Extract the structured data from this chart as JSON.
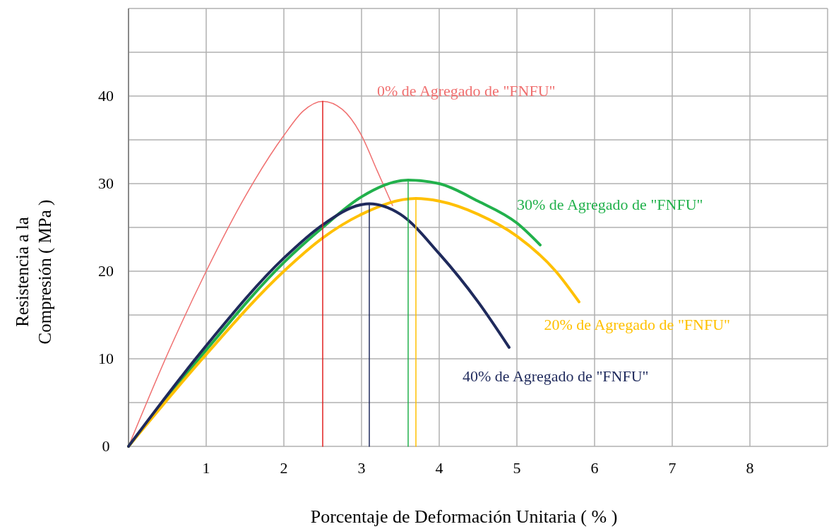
{
  "chart_data": {
    "type": "line",
    "xlabel": "Porcentaje de Deformación Unitaria ( % )",
    "ylabel": "Resistencia a la\nCompresión ( MPa )",
    "xlim": [
      0,
      9
    ],
    "ylim": [
      0,
      50
    ],
    "xticks": [
      {
        "value": 0,
        "label": null
      },
      1,
      2,
      3,
      4,
      5,
      6,
      7,
      8,
      {
        "value": 9,
        "label": null
      }
    ],
    "yticks": [
      0,
      {
        "value": 5,
        "label": null
      },
      10,
      {
        "value": 15,
        "label": null
      },
      20,
      {
        "value": 25,
        "label": null
      },
      30,
      {
        "value": 35,
        "label": null
      },
      40,
      {
        "value": 45,
        "label": null
      },
      {
        "value": 50,
        "label": null
      }
    ],
    "grid": true,
    "marker": "none",
    "line_style": "solid",
    "series": [
      {
        "name": "0% de Agregado de \"FNFU\"",
        "color": "#f07070",
        "x": [
          0,
          0.5,
          1,
          1.5,
          2,
          2.25,
          2.5,
          2.75,
          3,
          3.2,
          3.4
        ],
        "values": [
          0,
          10.5,
          20,
          28.5,
          35.5,
          38.3,
          39.4,
          38.5,
          35.5,
          31.5,
          27.5
        ]
      },
      {
        "name": "30% de Agregado de \"FNFU\"",
        "color": "#22b14c",
        "x": [
          0,
          1,
          2,
          2.5,
          3,
          3.6,
          4,
          4.5,
          5,
          5.3
        ],
        "values": [
          0,
          11,
          21,
          25,
          28.5,
          30.4,
          30,
          28,
          25.5,
          23
        ]
      },
      {
        "name": "20% de Agregado de \"FNFU\"",
        "color": "#ffc000",
        "x": [
          0,
          1,
          2,
          2.5,
          3,
          3.7,
          4,
          4.5,
          5,
          5.5,
          5.8
        ],
        "values": [
          0,
          10.5,
          20,
          23.8,
          26.5,
          28.3,
          28,
          26.5,
          24,
          20,
          16.5
        ]
      },
      {
        "name": "40% de Agregado de \"FNFU\"",
        "color": "#1f2a5c",
        "x": [
          0,
          1,
          2,
          2.5,
          3,
          3.1,
          3.5,
          4,
          4.5,
          4.9
        ],
        "values": [
          0,
          11.5,
          21.5,
          25.3,
          27.6,
          27.7,
          26.5,
          22,
          16.5,
          11.3
        ]
      },
      {
        "color": "#e02020",
        "x": [
          2.5,
          2.5
        ],
        "values": [
          0,
          39.4
        ]
      },
      {
        "color": "#1f2a5c",
        "x": [
          3.1,
          3.1
        ],
        "values": [
          0,
          27.7
        ]
      },
      {
        "color": "#22b14c",
        "x": [
          3.6,
          3.6
        ],
        "values": [
          0,
          30.4
        ]
      },
      {
        "color": "#ffc000",
        "x": [
          3.7,
          3.7
        ],
        "values": [
          0,
          28.3
        ]
      }
    ]
  }
}
